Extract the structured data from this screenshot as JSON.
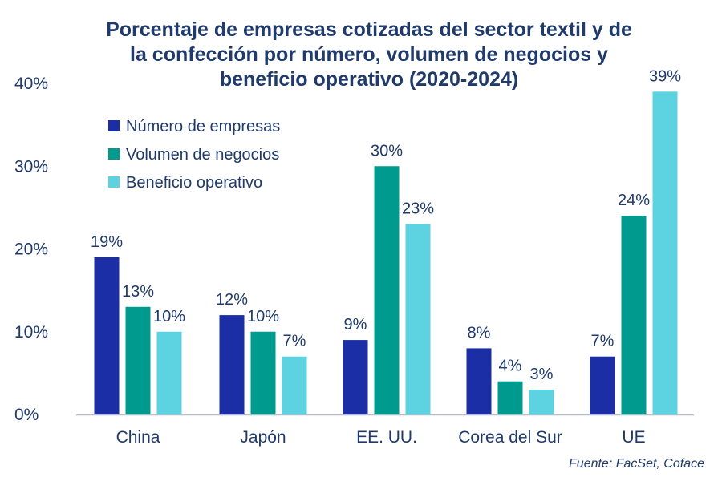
{
  "chart_data": {
    "type": "bar",
    "title_lines": [
      "Porcentaje de empresas cotizadas del sector textil y de",
      "la confección por número, volumen de negocios y",
      "beneficio operativo (2020-2024)"
    ],
    "categories": [
      "China",
      "Japón",
      "EE. UU.",
      "Corea del Sur",
      "UE"
    ],
    "series": [
      {
        "name": "Número de empresas",
        "color": "#1b2ea6",
        "values": [
          19,
          12,
          9,
          8,
          7
        ],
        "data_labels": [
          "19%",
          "12%",
          "9%",
          "8%",
          "7%"
        ]
      },
      {
        "name": "Volumen de negocios",
        "color": "#009b8f",
        "values": [
          13,
          10,
          30,
          4,
          24
        ],
        "data_labels": [
          "13%",
          "10%",
          "30%",
          "4%",
          "24%"
        ]
      },
      {
        "name": "Beneficio operativo",
        "color": "#5dd3e2",
        "values": [
          10,
          7,
          23,
          3,
          39
        ],
        "data_labels": [
          "10%",
          "7%",
          "23%",
          "3%",
          "39%"
        ]
      }
    ],
    "y_ticks": [
      {
        "value": 0,
        "label": "0%"
      },
      {
        "value": 10,
        "label": "10%"
      },
      {
        "value": 20,
        "label": "20%"
      },
      {
        "value": 30,
        "label": "30%"
      },
      {
        "value": 40,
        "label": "40%"
      }
    ],
    "ylim": [
      0,
      40
    ],
    "grid": false,
    "legend_position": "top-left",
    "xlabel": "",
    "ylabel": ""
  },
  "source": "Fuente: FacSet, Coface",
  "colors": {
    "text": "#1f3a6b",
    "axis": "#b8bcc8"
  }
}
